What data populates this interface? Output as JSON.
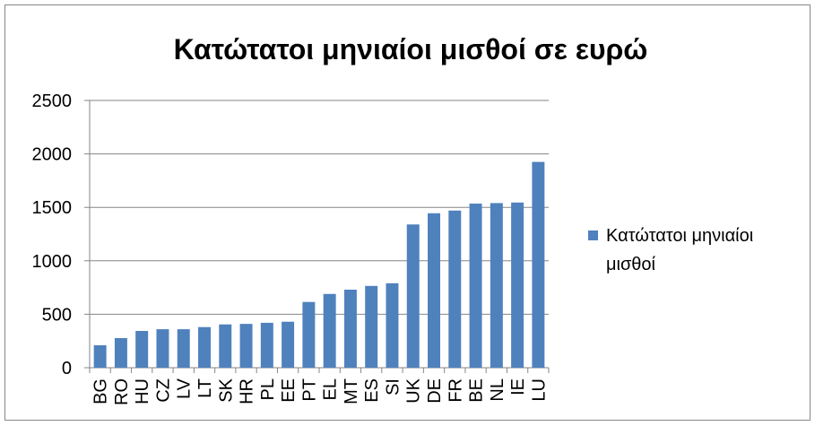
{
  "chart_data": {
    "type": "bar",
    "title": "Κατώτατοι μηνιαίοι μισθοί σε ευρώ",
    "categories": [
      "BG",
      "RO",
      "HU",
      "CZ",
      "LV",
      "LT",
      "SK",
      "HR",
      "PL",
      "EE",
      "PT",
      "EL",
      "MT",
      "ES",
      "SI",
      "UK",
      "DE",
      "FR",
      "BE",
      "NL",
      "IE",
      "LU"
    ],
    "series": [
      {
        "name": "Κατώτατοι μηνιαίοι μισθοί",
        "color": "#4f81bd",
        "values": [
          210,
          277,
          344,
          360,
          360,
          380,
          405,
          410,
          420,
          430,
          615,
          690,
          730,
          765,
          790,
          1340,
          1445,
          1470,
          1535,
          1540,
          1545,
          1925
        ]
      }
    ],
    "ylim": [
      0,
      2500
    ],
    "yticks": [
      0,
      500,
      1000,
      1500,
      2000,
      2500
    ],
    "grid": true,
    "legend": "right"
  }
}
